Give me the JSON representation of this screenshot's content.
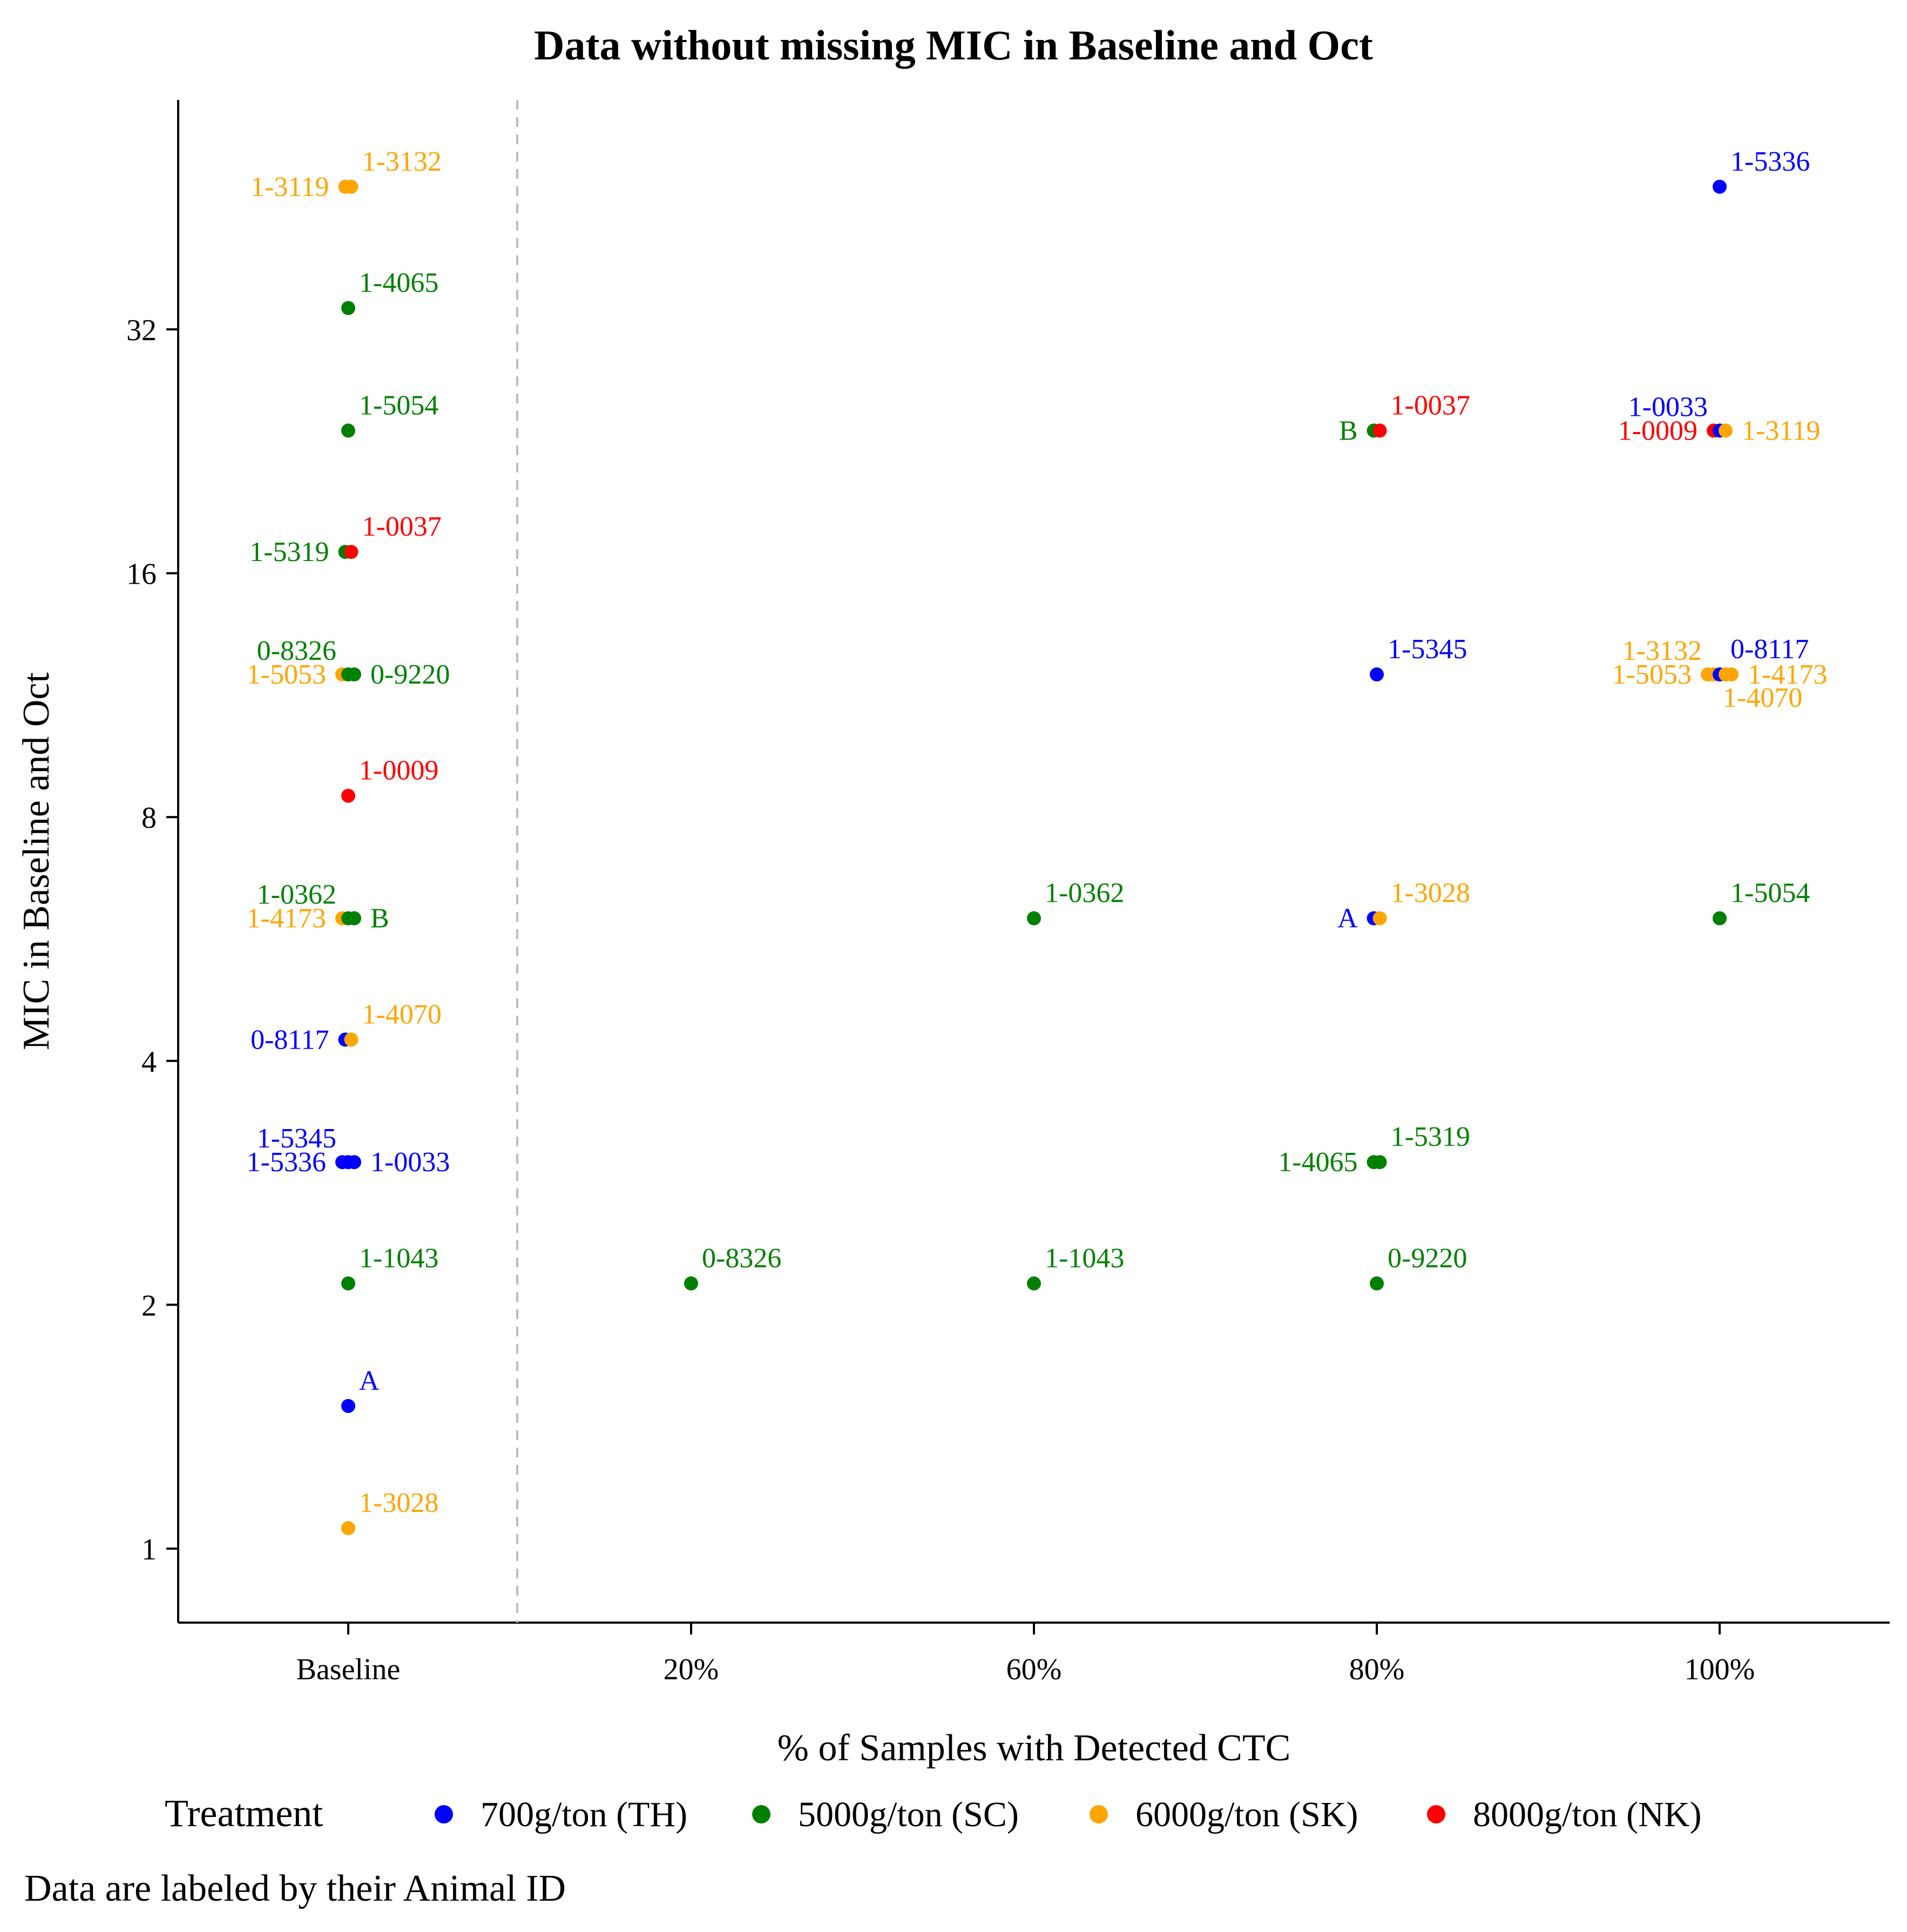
{
  "chart_data": {
    "type": "scatter",
    "title": "Data without missing MIC in Baseline and Oct",
    "xlabel": "% of Samples with Detected CTC",
    "ylabel": "MIC in Baseline and Oct",
    "y_scale": "log2",
    "y_ticks": [
      1,
      2,
      4,
      8,
      16,
      32
    ],
    "y_range": [
      0.8,
      60
    ],
    "x_categories": [
      "Baseline",
      "20%",
      "60%",
      "80%",
      "100%"
    ],
    "baseline_separator": "dashed",
    "legend": {
      "title": "Treatment",
      "items": [
        {
          "key": "TH",
          "label": "700g/ton (TH)",
          "color": "#0000ff"
        },
        {
          "key": "SC",
          "label": "5000g/ton (SC)",
          "color": "#008000"
        },
        {
          "key": "SK",
          "label": "6000g/ton (SK)",
          "color": "#ffa500"
        },
        {
          "key": "NK",
          "label": "8000g/ton (NK)",
          "color": "#ff0000"
        }
      ]
    },
    "caption": "Data are labeled by their Animal ID",
    "points": [
      {
        "cat": "Baseline",
        "mic": 48,
        "id": "1-3119",
        "tr": "SK",
        "pos": "left",
        "jit": -0.25
      },
      {
        "cat": "Baseline",
        "mic": 48,
        "id": "1-3132",
        "tr": "SK",
        "pos": "up",
        "jit": 0.25
      },
      {
        "cat": "Baseline",
        "mic": 34,
        "id": "1-4065",
        "tr": "SC",
        "pos": "up",
        "jit": 0
      },
      {
        "cat": "Baseline",
        "mic": 24,
        "id": "1-5054",
        "tr": "SC",
        "pos": "up",
        "jit": 0
      },
      {
        "cat": "Baseline",
        "mic": 17,
        "id": "1-5319",
        "tr": "SC",
        "pos": "left",
        "jit": -0.25
      },
      {
        "cat": "Baseline",
        "mic": 17,
        "id": "1-0037",
        "tr": "NK",
        "pos": "up",
        "jit": 0.25
      },
      {
        "cat": "Baseline",
        "mic": 12,
        "id": "1-5053",
        "tr": "SK",
        "pos": "left",
        "jit": -0.5
      },
      {
        "cat": "Baseline",
        "mic": 12,
        "id": "0-8326",
        "tr": "SC",
        "pos": "upleft",
        "jit": 0
      },
      {
        "cat": "Baseline",
        "mic": 12,
        "id": "0-9220",
        "tr": "SC",
        "pos": "right",
        "jit": 0.5
      },
      {
        "cat": "Baseline",
        "mic": 8.5,
        "id": "1-0009",
        "tr": "NK",
        "pos": "up",
        "jit": 0
      },
      {
        "cat": "Baseline",
        "mic": 6,
        "id": "1-4173",
        "tr": "SK",
        "pos": "left",
        "jit": -0.5
      },
      {
        "cat": "Baseline",
        "mic": 6,
        "id": "1-0362",
        "tr": "SC",
        "pos": "upleft",
        "jit": 0
      },
      {
        "cat": "Baseline",
        "mic": 6,
        "id": "B",
        "tr": "SC",
        "pos": "right",
        "jit": 0.5
      },
      {
        "cat": "Baseline",
        "mic": 4.25,
        "id": "0-8117",
        "tr": "TH",
        "pos": "left",
        "jit": -0.25
      },
      {
        "cat": "Baseline",
        "mic": 4.25,
        "id": "1-4070",
        "tr": "SK",
        "pos": "up",
        "jit": 0.25
      },
      {
        "cat": "Baseline",
        "mic": 3,
        "id": "1-5336",
        "tr": "TH",
        "pos": "left",
        "jit": -0.5
      },
      {
        "cat": "Baseline",
        "mic": 3,
        "id": "1-5345",
        "tr": "TH",
        "pos": "upleft",
        "jit": 0
      },
      {
        "cat": "Baseline",
        "mic": 3,
        "id": "1-0033",
        "tr": "TH",
        "pos": "right",
        "jit": 0.5
      },
      {
        "cat": "Baseline",
        "mic": 2.125,
        "id": "1-1043",
        "tr": "SC",
        "pos": "up",
        "jit": 0
      },
      {
        "cat": "Baseline",
        "mic": 1.5,
        "id": "A",
        "tr": "TH",
        "pos": "up",
        "jit": 0
      },
      {
        "cat": "Baseline",
        "mic": 1.06,
        "id": "1-3028",
        "tr": "SK",
        "pos": "up",
        "jit": 0
      },
      {
        "cat": "20%",
        "mic": 2.125,
        "id": "0-8326",
        "tr": "SC",
        "pos": "up",
        "jit": 0
      },
      {
        "cat": "60%",
        "mic": 6,
        "id": "1-0362",
        "tr": "SC",
        "pos": "up",
        "jit": 0
      },
      {
        "cat": "60%",
        "mic": 2.125,
        "id": "1-1043",
        "tr": "SC",
        "pos": "up",
        "jit": 0
      },
      {
        "cat": "80%",
        "mic": 24,
        "id": "B",
        "tr": "SC",
        "pos": "left",
        "jit": -0.25
      },
      {
        "cat": "80%",
        "mic": 24,
        "id": "1-0037",
        "tr": "NK",
        "pos": "up",
        "jit": 0.25
      },
      {
        "cat": "80%",
        "mic": 12,
        "id": "1-5345",
        "tr": "TH",
        "pos": "up",
        "jit": 0
      },
      {
        "cat": "80%",
        "mic": 6,
        "id": "A",
        "tr": "TH",
        "pos": "left",
        "jit": -0.25
      },
      {
        "cat": "80%",
        "mic": 6,
        "id": "1-3028",
        "tr": "SK",
        "pos": "up",
        "jit": 0.25
      },
      {
        "cat": "80%",
        "mic": 3,
        "id": "1-4065",
        "tr": "SC",
        "pos": "left",
        "jit": -0.25
      },
      {
        "cat": "80%",
        "mic": 3,
        "id": "1-5319",
        "tr": "SC",
        "pos": "up",
        "jit": 0.25
      },
      {
        "cat": "80%",
        "mic": 2.125,
        "id": "0-9220",
        "tr": "SC",
        "pos": "up",
        "jit": 0
      },
      {
        "cat": "100%",
        "mic": 48,
        "id": "1-5336",
        "tr": "TH",
        "pos": "up",
        "jit": 0
      },
      {
        "cat": "100%",
        "mic": 24,
        "id": "1-0009",
        "tr": "NK",
        "pos": "left",
        "jit": -0.5
      },
      {
        "cat": "100%",
        "mic": 24,
        "id": "1-0033",
        "tr": "TH",
        "pos": "upleft",
        "jit": 0
      },
      {
        "cat": "100%",
        "mic": 24,
        "id": "1-3119",
        "tr": "SK",
        "pos": "right",
        "jit": 0.5
      },
      {
        "cat": "100%",
        "mic": 12,
        "id": "1-5053",
        "tr": "SK",
        "pos": "left",
        "jit": -1
      },
      {
        "cat": "100%",
        "mic": 12,
        "id": "1-3132",
        "tr": "SK",
        "pos": "upleft",
        "jit": -0.5
      },
      {
        "cat": "100%",
        "mic": 12,
        "id": "0-8117",
        "tr": "TH",
        "pos": "up",
        "jit": 0
      },
      {
        "cat": "100%",
        "mic": 12,
        "id": "1-4070",
        "tr": "SK",
        "pos": "down",
        "jit": 0.5
      },
      {
        "cat": "100%",
        "mic": 12,
        "id": "1-4173",
        "tr": "SK",
        "pos": "right",
        "jit": 1
      },
      {
        "cat": "100%",
        "mic": 6,
        "id": "1-5054",
        "tr": "SC",
        "pos": "up",
        "jit": 0
      }
    ]
  }
}
